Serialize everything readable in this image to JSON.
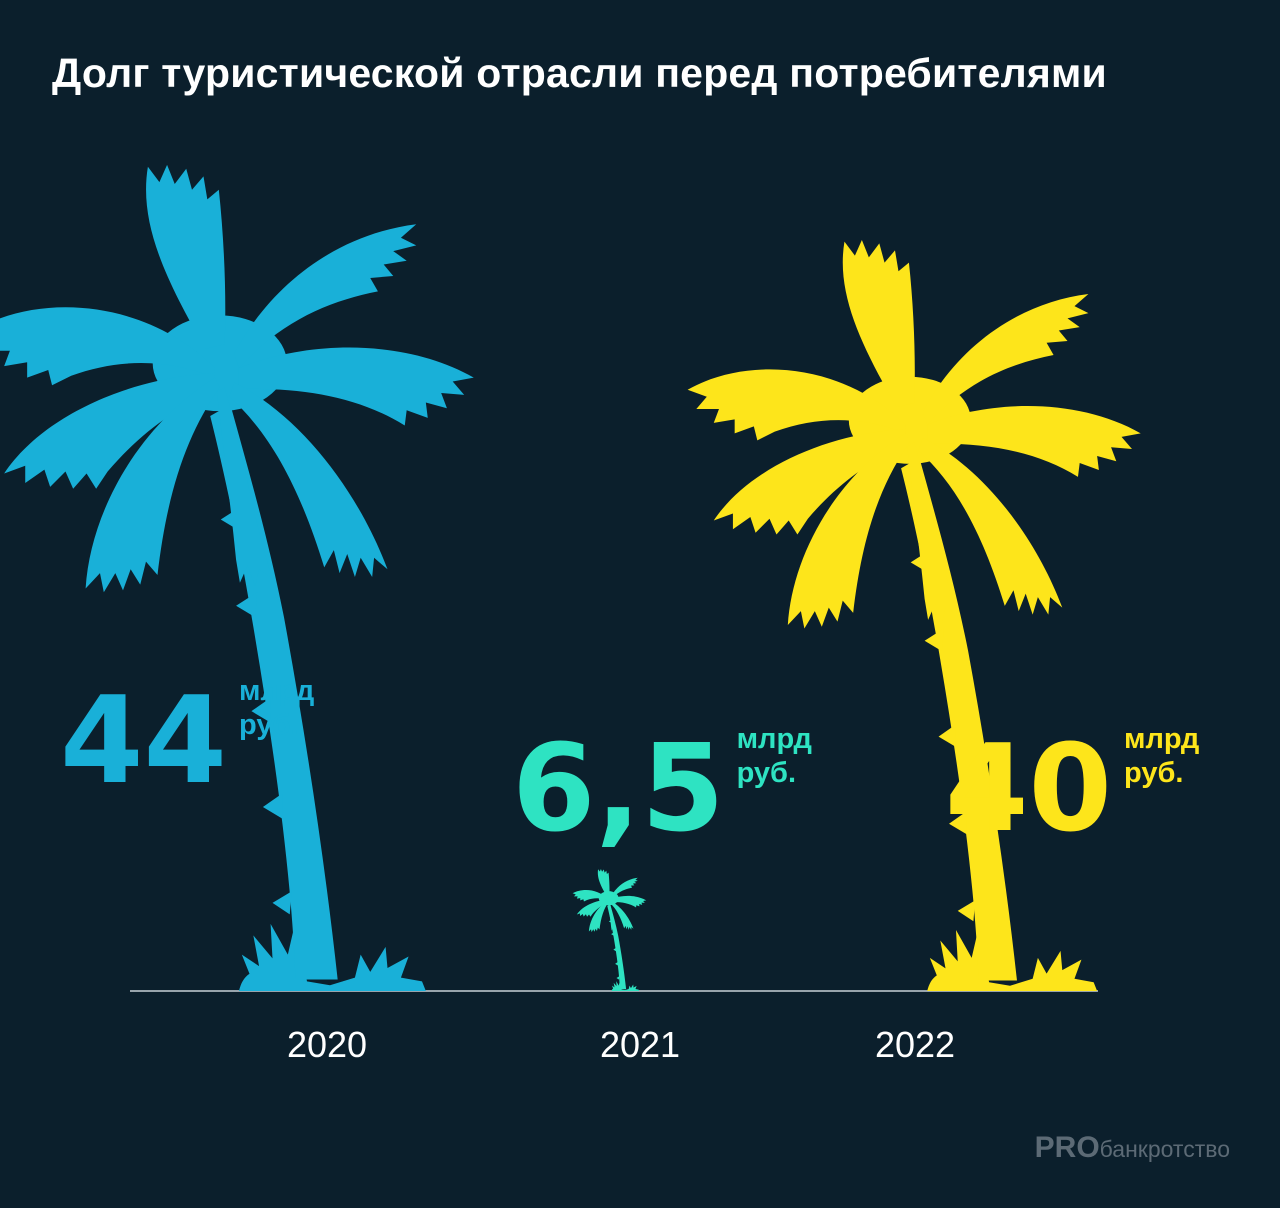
{
  "title": "Долг туристической отрасли перед потребителями",
  "unit_lines": [
    "млрд",
    "руб."
  ],
  "watermark": {
    "strong": "PRO",
    "light": "банкротство"
  },
  "colors": {
    "background": "#0b1f2c",
    "axis": "#c8d0d6",
    "title": "#ffffff"
  },
  "chart_data": {
    "type": "bar",
    "title": "Долг туристической отрасли перед потребителями",
    "categories": [
      "2020",
      "2021",
      "2022"
    ],
    "values": [
      44,
      6.5,
      40
    ],
    "value_labels": [
      "44",
      "6,5",
      "40"
    ],
    "unit": "млрд руб.",
    "series_colors": [
      "#19b0d8",
      "#2ee3c2",
      "#fde51b"
    ],
    "mark_shape": "palm-tree",
    "xlabel": "",
    "ylabel": "",
    "ylim": [
      0,
      44
    ],
    "grid": false,
    "legend": "none"
  }
}
